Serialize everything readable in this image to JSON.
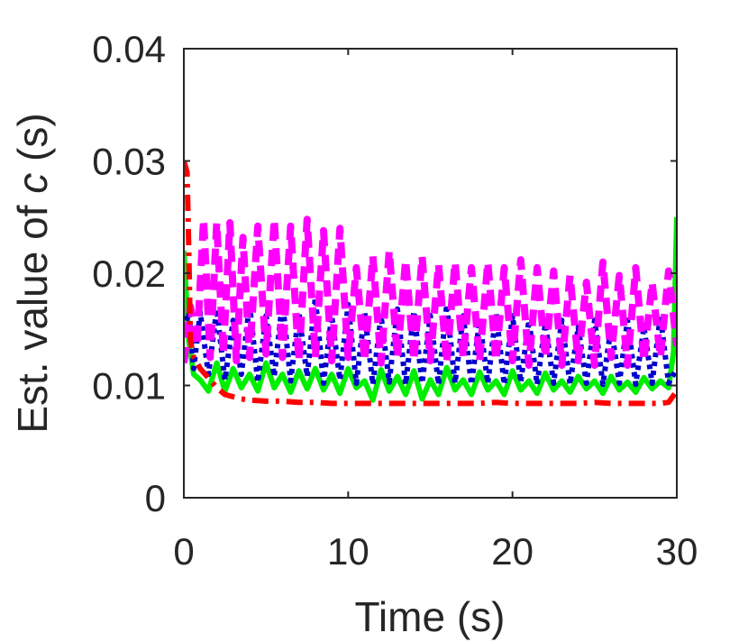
{
  "chart_data": {
    "type": "line",
    "title": "",
    "xlabel": "Time (s)",
    "ylabel_prefix": "Est. value of ",
    "ylabel_symbol": "c",
    "ylabel_suffix": " (s)",
    "xlim": [
      0,
      30
    ],
    "ylim": [
      0,
      0.04
    ],
    "xticks": [
      0,
      10,
      20,
      30
    ],
    "xtick_labels": [
      "0",
      "10",
      "20",
      "30"
    ],
    "yticks": [
      0,
      0.01,
      0.02,
      0.03,
      0.04
    ],
    "ytick_labels": [
      "0",
      "0.01",
      "0.02",
      "0.03",
      "0.04"
    ],
    "grid": false,
    "legend": "none",
    "series": [
      {
        "color": "#00ee00",
        "style": "solid",
        "x": [
          0,
          0.3,
          0.6,
          1.0,
          1.5,
          2.0,
          2.5,
          3.0,
          3.5,
          4.0,
          4.5,
          5.0,
          5.5,
          6.0,
          6.5,
          7.0,
          7.5,
          8.0,
          8.5,
          9.0,
          9.5,
          10.0,
          10.5,
          11.0,
          11.5,
          12.0,
          12.5,
          13.0,
          13.5,
          14.0,
          14.5,
          15.0,
          15.5,
          16.0,
          16.5,
          17.0,
          17.5,
          18.0,
          18.5,
          19.0,
          19.5,
          20.0,
          20.5,
          21.0,
          21.5,
          22.0,
          22.5,
          23.0,
          23.5,
          24.0,
          24.5,
          25.0,
          25.5,
          26.0,
          26.5,
          27.0,
          27.5,
          28.0,
          28.5,
          29.0,
          29.5,
          29.8,
          30.0
        ],
        "y": [
          0.022,
          0.014,
          0.011,
          0.0105,
          0.0095,
          0.012,
          0.0095,
          0.0115,
          0.0098,
          0.011,
          0.0095,
          0.012,
          0.0098,
          0.011,
          0.0094,
          0.0113,
          0.0097,
          0.0115,
          0.0096,
          0.011,
          0.0093,
          0.0115,
          0.0098,
          0.0104,
          0.0087,
          0.0114,
          0.0095,
          0.0108,
          0.0092,
          0.0113,
          0.0088,
          0.0105,
          0.0092,
          0.0116,
          0.0096,
          0.0105,
          0.0092,
          0.0112,
          0.0096,
          0.0104,
          0.0092,
          0.0113,
          0.0096,
          0.0104,
          0.0093,
          0.0111,
          0.0096,
          0.0104,
          0.0094,
          0.0108,
          0.0097,
          0.0104,
          0.0093,
          0.0108,
          0.0096,
          0.0103,
          0.0094,
          0.0107,
          0.0097,
          0.0104,
          0.0098,
          0.013,
          0.025
        ]
      },
      {
        "color": "#0000cc",
        "style": "dotted",
        "x": [
          0,
          0.3,
          0.6,
          1.0,
          1.5,
          2.0,
          2.5,
          3.0,
          3.5,
          4.0,
          4.5,
          5.0,
          5.5,
          6.0,
          6.5,
          7.0,
          7.5,
          8.0,
          8.5,
          9.0,
          9.5,
          10.0,
          10.5,
          11.0,
          11.5,
          12.0,
          12.5,
          13.0,
          13.5,
          14.0,
          14.5,
          15.0,
          15.5,
          16.0,
          16.5,
          17.0,
          17.5,
          18.0,
          18.5,
          19.0,
          19.5,
          20.0,
          20.5,
          21.0,
          21.5,
          22.0,
          22.5,
          23.0,
          23.5,
          24.0,
          24.5,
          25.0,
          25.5,
          26.0,
          26.5,
          27.0,
          27.5,
          28.0,
          28.5,
          29.0,
          29.5,
          30.0
        ],
        "y": [
          0.015,
          0.0165,
          0.0115,
          0.0165,
          0.011,
          0.0168,
          0.0105,
          0.0158,
          0.011,
          0.0172,
          0.0103,
          0.0162,
          0.0108,
          0.0175,
          0.0104,
          0.0165,
          0.0108,
          0.0178,
          0.0102,
          0.0162,
          0.0105,
          0.0172,
          0.0102,
          0.0165,
          0.0101,
          0.0162,
          0.0103,
          0.0168,
          0.0101,
          0.0166,
          0.0102,
          0.0162,
          0.0101,
          0.0172,
          0.0102,
          0.0162,
          0.0101,
          0.0158,
          0.0102,
          0.0165,
          0.0101,
          0.0162,
          0.0103,
          0.0158,
          0.0101,
          0.0155,
          0.0102,
          0.0158,
          0.0101,
          0.0152,
          0.0102,
          0.0158,
          0.0101,
          0.0152,
          0.0102,
          0.0158,
          0.0101,
          0.0152,
          0.0102,
          0.0162,
          0.0102,
          0.0115
        ]
      },
      {
        "color": "#ff00ff",
        "style": "dashed",
        "x": [
          0,
          0.4,
          0.8,
          1.2,
          1.6,
          2.0,
          2.4,
          2.8,
          3.2,
          3.6,
          4.0,
          4.5,
          5.0,
          5.5,
          6.0,
          6.5,
          7.0,
          7.5,
          8.0,
          8.5,
          9.0,
          9.5,
          10.0,
          10.5,
          11.0,
          11.5,
          12.0,
          12.5,
          13.0,
          13.5,
          14.0,
          14.5,
          15.0,
          15.5,
          16.0,
          16.5,
          17.0,
          17.5,
          18.0,
          18.5,
          19.0,
          19.5,
          20.0,
          20.5,
          21.0,
          21.5,
          22.0,
          22.5,
          23.0,
          23.5,
          24.0,
          24.5,
          25.0,
          25.5,
          26.0,
          26.5,
          27.0,
          27.5,
          28.0,
          28.5,
          29.0,
          29.5,
          30.0
        ],
        "y": [
          0.012,
          0.017,
          0.0135,
          0.0248,
          0.0125,
          0.0245,
          0.0128,
          0.0245,
          0.0122,
          0.0232,
          0.0125,
          0.0242,
          0.0128,
          0.0248,
          0.0125,
          0.0242,
          0.0122,
          0.0248,
          0.0125,
          0.0238,
          0.0122,
          0.024,
          0.0125,
          0.0205,
          0.0122,
          0.0215,
          0.012,
          0.022,
          0.0125,
          0.0212,
          0.0122,
          0.0215,
          0.0122,
          0.0208,
          0.012,
          0.021,
          0.0125,
          0.0205,
          0.0122,
          0.021,
          0.0122,
          0.0205,
          0.0122,
          0.0212,
          0.0118,
          0.0205,
          0.0125,
          0.0202,
          0.0118,
          0.0198,
          0.0122,
          0.0192,
          0.0118,
          0.021,
          0.0125,
          0.0198,
          0.0118,
          0.0205,
          0.0122,
          0.0192,
          0.0125,
          0.0202,
          0.0135
        ]
      },
      {
        "color": "#ff0000",
        "style": "dashdot",
        "x": [
          0,
          0.2,
          0.3,
          0.4,
          0.6,
          0.8,
          1.0,
          1.3,
          1.6,
          2.0,
          2.5,
          3.0,
          3.5,
          4.0,
          5.0,
          6.0,
          7.0,
          8.0,
          9.0,
          10.0,
          11.0,
          12.0,
          13.0,
          14.0,
          15.0,
          16.0,
          17.0,
          18.0,
          19.0,
          20.0,
          21.0,
          22.0,
          23.0,
          24.0,
          25.0,
          26.0,
          27.0,
          28.0,
          29.0,
          29.5,
          30.0
        ],
        "y": [
          0.03,
          0.029,
          0.022,
          0.014,
          0.0125,
          0.012,
          0.0115,
          0.011,
          0.0105,
          0.0098,
          0.0092,
          0.009,
          0.0088,
          0.0087,
          0.0086,
          0.0086,
          0.0085,
          0.0085,
          0.0084,
          0.0084,
          0.0084,
          0.0084,
          0.0084,
          0.0084,
          0.0084,
          0.0084,
          0.0084,
          0.0084,
          0.0085,
          0.0084,
          0.0084,
          0.0084,
          0.0084,
          0.0084,
          0.0085,
          0.0084,
          0.0084,
          0.0084,
          0.0084,
          0.0085,
          0.0095
        ]
      }
    ]
  }
}
